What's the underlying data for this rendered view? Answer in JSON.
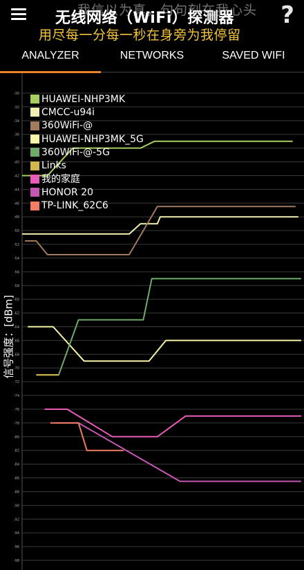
{
  "header": {
    "title": "无线网络（WiFi）探测器",
    "overlay_top": "我信以为真，句句刻在我心头",
    "overlay_yellow": "用尽每一分每一秒在身旁为我停留",
    "menu_icon": "hamburger-icon",
    "help_icon": "question-icon",
    "help_glyph": "?"
  },
  "tabs": [
    {
      "label": "ANALYZER",
      "active": true
    },
    {
      "label": "NETWORKS",
      "active": false
    },
    {
      "label": "SAVED WIFI",
      "active": false
    }
  ],
  "colors": {
    "accent": "#e9842b",
    "background": "#000000",
    "grid": "#3a3a3a"
  },
  "chart_data": {
    "type": "line",
    "ylabel": "信号强度：[dBm]",
    "ylim": [
      -98,
      -30
    ],
    "y_ticks": [
      -30,
      -32,
      -34,
      -36,
      -38,
      -40,
      -42,
      -44,
      -46,
      -48,
      -50,
      -52,
      -54,
      -56,
      -58,
      -60,
      -62,
      -64,
      -66,
      -68,
      -70,
      -72,
      -74,
      -76,
      -78,
      -80,
      -82,
      -84,
      -86,
      -88,
      -90,
      -92,
      -94,
      -96,
      -98
    ],
    "grid": true,
    "legend_placement": "top-left",
    "series": [
      {
        "name": "HUAWEI-NHP3MK",
        "color": "#a8cf5d",
        "points": [
          [
            0.0,
            -42.0
          ],
          [
            0.09,
            -42.0
          ],
          [
            0.18,
            -38.0
          ],
          [
            0.42,
            -38.0
          ],
          [
            0.47,
            -37.0
          ],
          [
            0.96,
            -37.0
          ]
        ]
      },
      {
        "name": "CMCC-u94i",
        "color": "#f2efb3",
        "points": [
          [
            0.0,
            -50.5
          ],
          [
            0.38,
            -50.5
          ],
          [
            0.42,
            -49.0
          ],
          [
            0.48,
            -49.0
          ],
          [
            0.49,
            -48.0
          ],
          [
            0.98,
            -48.0
          ]
        ]
      },
      {
        "name": "360WiFi-@",
        "color": "#a17a60",
        "points": [
          [
            0.01,
            -51.5
          ],
          [
            0.05,
            -51.5
          ],
          [
            0.09,
            -53.5
          ],
          [
            0.38,
            -53.5
          ],
          [
            0.48,
            -46.5
          ],
          [
            0.97,
            -46.5
          ]
        ]
      },
      {
        "name": "HUAWEI-NHP3MK_5G",
        "color": "#f8f4a8",
        "points": [
          [
            0.02,
            -64.0
          ],
          [
            0.11,
            -64.0
          ],
          [
            0.22,
            -69.0
          ],
          [
            0.45,
            -69.0
          ],
          [
            0.51,
            -66.0
          ],
          [
            0.99,
            -66.0
          ]
        ]
      },
      {
        "name": "360WiFi-@-5G",
        "color": "#6fab6b",
        "points": [
          [
            0.05,
            -71.0
          ],
          [
            0.13,
            -71.0
          ],
          [
            0.2,
            -63.0
          ],
          [
            0.43,
            -63.0
          ],
          [
            0.46,
            -57.0
          ],
          [
            0.99,
            -57.0
          ]
        ]
      },
      {
        "name": "Links",
        "color": "#d2b84a",
        "points": [
          [
            0.05,
            -71.0
          ],
          [
            0.13,
            -71.0
          ]
        ]
      },
      {
        "name": "我的家庭",
        "color": "#e95bb8",
        "points": [
          [
            0.08,
            -76.0
          ],
          [
            0.16,
            -76.0
          ],
          [
            0.32,
            -80.0
          ],
          [
            0.48,
            -80.0
          ],
          [
            0.58,
            -77.0
          ],
          [
            0.99,
            -77.0
          ]
        ]
      },
      {
        "name": "HONOR 20",
        "color": "#c456b4",
        "points": [
          [
            0.12,
            -78.0
          ],
          [
            0.2,
            -78.0
          ],
          [
            0.56,
            -86.5
          ],
          [
            0.99,
            -86.5
          ]
        ]
      },
      {
        "name": "TP-LINK_62C6",
        "color": "#f07d64",
        "points": [
          [
            0.1,
            -78.0
          ],
          [
            0.2,
            -78.0
          ],
          [
            0.23,
            -82.0
          ],
          [
            0.36,
            -82.0
          ]
        ]
      }
    ]
  }
}
